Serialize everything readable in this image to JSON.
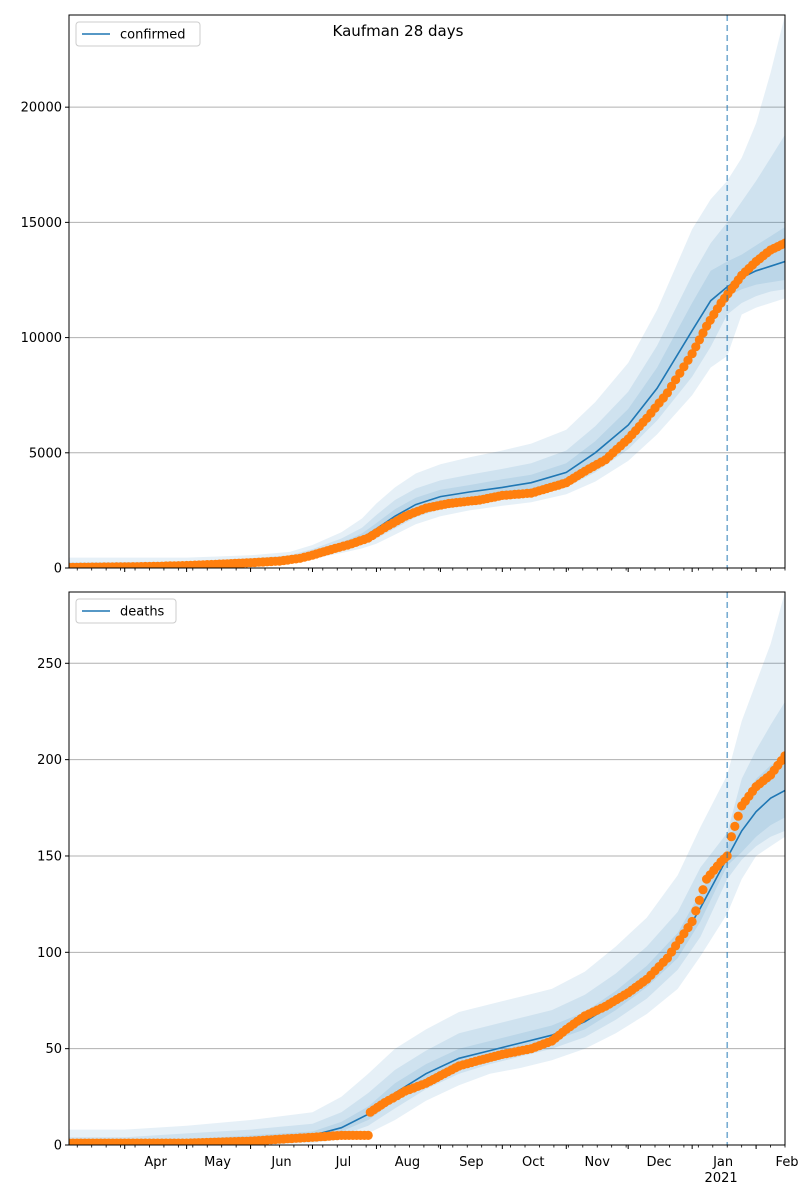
{
  "title": "Kaufman 28 days",
  "colors": {
    "line": "#1f77b4",
    "observed": "#ff7f0e",
    "band": "#1f77b4",
    "grid": "#b0b0b0",
    "forecast_line": "#1f77b4"
  },
  "x_axis": {
    "start": "2020-03-05",
    "end": "2021-02-15",
    "month_ticks": [
      {
        "date": "2020-04-01",
        "label": "Apr"
      },
      {
        "date": "2020-05-01",
        "label": "May"
      },
      {
        "date": "2020-06-01",
        "label": "Jun"
      },
      {
        "date": "2020-07-01",
        "label": "Jul"
      },
      {
        "date": "2020-08-01",
        "label": "Aug"
      },
      {
        "date": "2020-09-01",
        "label": "Sep"
      },
      {
        "date": "2020-10-01",
        "label": "Oct"
      },
      {
        "date": "2020-11-01",
        "label": "Nov"
      },
      {
        "date": "2020-12-01",
        "label": "Dec"
      },
      {
        "date": "2021-01-01",
        "label": "Jan"
      },
      {
        "date": "2021-02-01",
        "label": "Feb"
      }
    ],
    "year_label": "2021",
    "forecast_start": "2021-01-18"
  },
  "chart_data": [
    {
      "type": "line",
      "legend": "confirmed",
      "legend_position": "upper-left",
      "ylim": [
        0,
        24000
      ],
      "yticks": [
        0,
        5000,
        10000,
        15000,
        20000
      ],
      "grid": "horizontal",
      "model": {
        "dates": [
          "2020-03-05",
          "2020-04-01",
          "2020-05-01",
          "2020-06-01",
          "2020-06-20",
          "2020-07-01",
          "2020-07-15",
          "2020-07-25",
          "2020-08-01",
          "2020-08-10",
          "2020-08-20",
          "2020-09-01",
          "2020-09-15",
          "2020-10-01",
          "2020-10-15",
          "2020-11-01",
          "2020-11-15",
          "2020-12-01",
          "2020-12-15",
          "2021-01-01",
          "2021-01-10",
          "2021-01-18",
          "2021-01-25",
          "2021-02-01",
          "2021-02-08",
          "2021-02-15"
        ],
        "median": [
          50,
          60,
          120,
          250,
          380,
          600,
          950,
          1300,
          1700,
          2250,
          2750,
          3100,
          3300,
          3500,
          3700,
          4150,
          5000,
          6200,
          7800,
          10300,
          11600,
          12200,
          12600,
          12900,
          13100,
          13300
        ],
        "band_inner": {
          "lower": [
            20,
            40,
            100,
            210,
            330,
            540,
            850,
            1150,
            1450,
            1950,
            2450,
            2800,
            3000,
            3200,
            3400,
            3800,
            4550,
            5600,
            7000,
            9200,
            10500,
            11800,
            12100,
            12300,
            12400,
            12500
          ],
          "upper": [
            120,
            130,
            180,
            320,
            460,
            700,
            1100,
            1500,
            1950,
            2550,
            3050,
            3400,
            3600,
            3850,
            4050,
            4550,
            5500,
            6900,
            8700,
            11500,
            12900,
            13300,
            13600,
            14000,
            14400,
            14800
          ]
        },
        "band_mid": {
          "lower": [
            5,
            20,
            70,
            170,
            280,
            480,
            760,
            1020,
            1280,
            1720,
            2200,
            2550,
            2780,
            2950,
            3150,
            3500,
            4150,
            5150,
            6400,
            8300,
            9600,
            11000,
            11500,
            11800,
            12000,
            12100
          ],
          "upper": [
            250,
            260,
            280,
            420,
            560,
            820,
            1280,
            1750,
            2300,
            2950,
            3450,
            3800,
            4050,
            4300,
            4550,
            5100,
            6150,
            7650,
            9650,
            12700,
            14100,
            15000,
            15900,
            16800,
            17800,
            18800
          ]
        },
        "band_outer": {
          "lower": [
            0,
            0,
            30,
            120,
            220,
            400,
            650,
            850,
            1050,
            1450,
            1900,
            2250,
            2500,
            2700,
            2850,
            3200,
            3750,
            4650,
            5800,
            7500,
            8700,
            9200,
            11000,
            11300,
            11500,
            11700
          ],
          "upper": [
            450,
            450,
            450,
            550,
            700,
            1000,
            1550,
            2150,
            2800,
            3500,
            4100,
            4500,
            4800,
            5100,
            5400,
            6000,
            7200,
            8900,
            11200,
            14700,
            16000,
            16800,
            17800,
            19300,
            21500,
            24000
          ]
        }
      },
      "observed": {
        "dates": [
          "2020-03-05",
          "2020-03-20",
          "2020-04-01",
          "2020-04-15",
          "2020-05-01",
          "2020-05-15",
          "2020-06-01",
          "2020-06-15",
          "2020-06-25",
          "2020-07-01",
          "2020-07-10",
          "2020-07-20",
          "2020-07-28",
          "2020-08-05",
          "2020-08-15",
          "2020-08-25",
          "2020-09-05",
          "2020-09-20",
          "2020-10-01",
          "2020-10-15",
          "2020-11-01",
          "2020-11-10",
          "2020-11-20",
          "2020-12-01",
          "2020-12-10",
          "2020-12-20",
          "2021-01-01",
          "2021-01-08",
          "2021-01-15",
          "2021-01-20",
          "2021-01-25",
          "2021-02-01",
          "2021-02-08",
          "2021-02-15"
        ],
        "values": [
          30,
          40,
          50,
          70,
          110,
          160,
          230,
          300,
          420,
          560,
          800,
          1050,
          1300,
          1750,
          2250,
          2600,
          2800,
          2950,
          3150,
          3250,
          3700,
          4200,
          4700,
          5600,
          6500,
          7600,
          9300,
          10500,
          11500,
          12100,
          12700,
          13300,
          13800,
          14100
        ]
      }
    },
    {
      "type": "line",
      "legend": "deaths",
      "legend_position": "upper-left",
      "ylim": [
        0,
        287
      ],
      "yticks": [
        0,
        50,
        100,
        150,
        200,
        250
      ],
      "grid": "horizontal",
      "model": {
        "dates": [
          "2020-03-05",
          "2020-04-01",
          "2020-05-01",
          "2020-06-01",
          "2020-07-01",
          "2020-07-15",
          "2020-07-28",
          "2020-08-10",
          "2020-08-25",
          "2020-09-10",
          "2020-09-25",
          "2020-10-10",
          "2020-10-25",
          "2020-11-10",
          "2020-11-25",
          "2020-12-10",
          "2020-12-25",
          "2021-01-05",
          "2021-01-18",
          "2021-01-25",
          "2021-02-01",
          "2021-02-08",
          "2021-02-15"
        ],
        "median": [
          1,
          1,
          2,
          3,
          5,
          9,
          16,
          27,
          37,
          45,
          49,
          53,
          57,
          64,
          74,
          87,
          103,
          123,
          149,
          163,
          173,
          180,
          184
        ],
        "band_inner": {
          "lower": [
            0,
            0,
            1,
            2,
            4,
            7,
            13,
            23,
            33,
            41,
            46,
            50,
            54,
            60,
            70,
            82,
            97,
            116,
            145,
            152,
            160,
            166,
            170
          ],
          "upper": [
            2,
            2,
            3,
            5,
            7,
            12,
            20,
            32,
            42,
            50,
            54,
            58,
            62,
            69,
            80,
            93,
            110,
            131,
            154,
            178,
            190,
            197,
            201
          ]
        },
        "band_mid": {
          "lower": [
            0,
            0,
            0,
            1,
            3,
            5,
            10,
            19,
            29,
            37,
            42,
            46,
            50,
            56,
            65,
            76,
            91,
            108,
            138,
            148,
            155,
            160,
            163
          ],
          "upper": [
            4,
            4,
            6,
            8,
            11,
            17,
            27,
            39,
            49,
            58,
            62,
            66,
            70,
            78,
            89,
            103,
            121,
            144,
            162,
            190,
            205,
            218,
            230
          ]
        },
        "band_outer": {
          "lower": [
            0,
            0,
            0,
            0,
            1,
            3,
            6,
            13,
            23,
            31,
            37,
            40,
            44,
            50,
            58,
            68,
            81,
            98,
            120,
            138,
            150,
            155,
            160
          ],
          "upper": [
            8,
            8,
            10,
            13,
            17,
            25,
            37,
            50,
            60,
            69,
            73,
            77,
            81,
            90,
            103,
            118,
            140,
            165,
            192,
            220,
            240,
            260,
            287
          ]
        }
      },
      "observed": {
        "dates": [
          "2020-03-05",
          "2020-04-01",
          "2020-05-01",
          "2020-06-01",
          "2020-06-15",
          "2020-07-01",
          "2020-07-15",
          "2020-07-28",
          "2020-07-29",
          "2020-08-05",
          "2020-08-15",
          "2020-08-25",
          "2020-09-01",
          "2020-09-10",
          "2020-09-20",
          "2020-10-01",
          "2020-10-15",
          "2020-10-25",
          "2020-11-01",
          "2020-11-10",
          "2020-11-20",
          "2020-12-01",
          "2020-12-10",
          "2020-12-20",
          "2021-01-01",
          "2021-01-08",
          "2021-01-15",
          "2021-01-18",
          "2021-01-20",
          "2021-01-25",
          "2021-02-01",
          "2021-02-08",
          "2021-02-15"
        ],
        "values": [
          1,
          1,
          1,
          2,
          3,
          4,
          5,
          5,
          17,
          22,
          28,
          32,
          36,
          41,
          44,
          47,
          50,
          54,
          60,
          67,
          72,
          79,
          86,
          97,
          116,
          138,
          147,
          150,
          160,
          176,
          186,
          192,
          202
        ]
      }
    }
  ]
}
